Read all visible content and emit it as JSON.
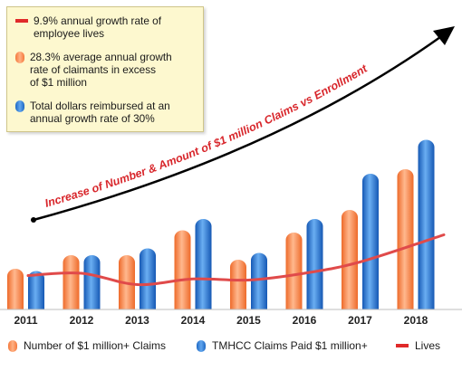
{
  "legend_notes": [
    {
      "marker": "line-red",
      "text_lines": [
        "9.9% annual growth rate of",
        "employee lives"
      ]
    },
    {
      "marker": "dot-orange",
      "text_lines": [
        "28.3% average annual growth",
        "rate of claimants in excess",
        "of $1 million"
      ]
    },
    {
      "marker": "dot-blue",
      "text_lines": [
        "Total dollars reimbursed at an",
        "annual growth rate of 30%"
      ]
    }
  ],
  "arrow_label": "Increase of Number & Amount of $1 million Claims vs Enrollment",
  "bottom_legend": {
    "claims_count": "Number of $1 million+ Claims",
    "claims_paid": "TMHCC Claims Paid $1 million+",
    "lives": "Lives"
  },
  "colors": {
    "orange": "#f4793c",
    "blue": "#1d68c4",
    "lives_line": "#e04a4a",
    "arrow": "#000000",
    "arrow_label": "#d8262b",
    "legend_bg": "#fdf8cf"
  },
  "chart_data": {
    "type": "bar",
    "categories": [
      "2011",
      "2012",
      "2013",
      "2014",
      "2015",
      "2016",
      "2017",
      "2018"
    ],
    "series": [
      {
        "name": "Number of $1 million+ Claims",
        "values": [
          18,
          24,
          24,
          35,
          22,
          34,
          44,
          62
        ]
      },
      {
        "name": "TMHCC Claims Paid $1 million+",
        "values": [
          17,
          24,
          27,
          40,
          25,
          40,
          60,
          75
        ]
      },
      {
        "name": "Lives",
        "type": "line",
        "values": [
          15,
          16,
          11,
          13.5,
          13,
          16,
          21,
          33
        ]
      }
    ],
    "ylim": [
      0,
      100
    ],
    "grid": false
  }
}
